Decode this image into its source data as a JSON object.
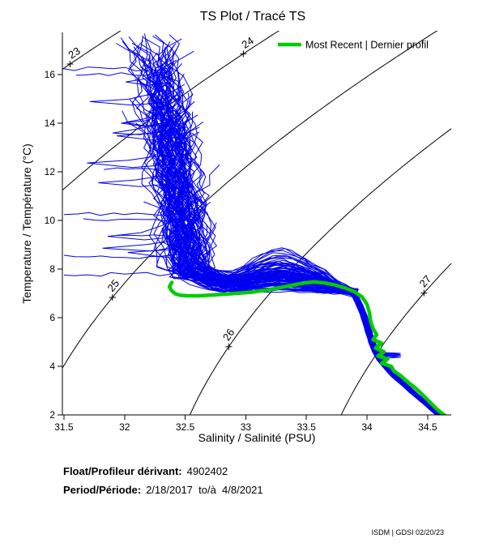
{
  "title": "TS Plot / Tracé TS",
  "legend": {
    "label": "Most Recent | Dernier profil"
  },
  "info": {
    "float_label": "Float/Profileur dérivant:",
    "float_value": "4902402",
    "period_label": "Period/Période:",
    "period_value": "2/18/2017  to/à  4/8/2021"
  },
  "footer": {
    "credit": "ISDM | GDSI 02/20/23"
  },
  "colors": {
    "profiles": "#0000EE",
    "most_recent": "#00CC00",
    "contours": "#000000",
    "axis": "#000000"
  },
  "chart_data": {
    "type": "line",
    "title": "TS Plot / Tracé TS",
    "xlabel": "Salinity / Salinité (PSU)",
    "ylabel": "Temperature / Température (°C)",
    "xlim": [
      31.487,
      34.695
    ],
    "ylim": [
      2,
      17.73
    ],
    "x_ticks": [
      31.5,
      32,
      32.5,
      33,
      33.5,
      34,
      34.5
    ],
    "x_tick_labels": [
      "31.5",
      "32",
      "32.5",
      "33",
      "33.5",
      "34",
      "34.5"
    ],
    "y_ticks": [
      2,
      4,
      6,
      8,
      10,
      12,
      14,
      16
    ],
    "y_tick_labels": [
      "2",
      "4",
      "6",
      "8",
      "10",
      "12",
      "14",
      "16"
    ],
    "grid": false,
    "legend_position": "top-right-inside",
    "contours": {
      "kind": "sigma-t density isopycnals (EOS-80, p=0)",
      "levels": [
        {
          "value": 23,
          "label": "23",
          "anchor_s": 31.55
        },
        {
          "value": 24,
          "label": "24",
          "anchor_s": 32.98
        },
        {
          "value": 25,
          "label": "25",
          "anchor_s": 31.9
        },
        {
          "value": 26,
          "label": "26",
          "anchor_s": 32.86
        },
        {
          "value": 27,
          "label": "27",
          "anchor_s": 34.47
        }
      ]
    },
    "most_recent": {
      "name": "Most Recent | Dernier profil",
      "color_key": "most_recent",
      "points_s_t": [
        [
          32.39,
          7.45
        ],
        [
          32.37,
          7.28
        ],
        [
          32.385,
          7.12
        ],
        [
          32.42,
          6.98
        ],
        [
          32.46,
          6.92
        ],
        [
          32.52,
          6.9
        ],
        [
          32.62,
          6.9
        ],
        [
          32.75,
          6.94
        ],
        [
          32.9,
          6.99
        ],
        [
          33.05,
          7.05
        ],
        [
          33.2,
          7.16
        ],
        [
          33.35,
          7.3
        ],
        [
          33.47,
          7.42
        ],
        [
          33.56,
          7.47
        ],
        [
          33.65,
          7.43
        ],
        [
          33.73,
          7.35
        ],
        [
          33.82,
          7.22
        ],
        [
          33.9,
          7.06
        ],
        [
          33.96,
          6.85
        ],
        [
          34.0,
          6.55
        ],
        [
          34.02,
          6.2
        ],
        [
          34.03,
          5.85
        ],
        [
          34.05,
          5.55
        ],
        [
          34.08,
          5.3
        ],
        [
          34.05,
          5.1
        ],
        [
          34.12,
          4.95
        ],
        [
          34.07,
          4.75
        ],
        [
          34.14,
          4.6
        ],
        [
          34.09,
          4.42
        ],
        [
          34.17,
          4.3
        ],
        [
          34.12,
          4.12
        ],
        [
          34.2,
          4.0
        ],
        [
          34.22,
          3.82
        ],
        [
          34.28,
          3.6
        ],
        [
          34.33,
          3.38
        ],
        [
          34.4,
          3.1
        ],
        [
          34.46,
          2.82
        ],
        [
          34.52,
          2.52
        ],
        [
          34.58,
          2.22
        ],
        [
          34.63,
          2.02
        ],
        [
          34.66,
          1.93
        ]
      ]
    },
    "profiles": {
      "description": "All float profiles 2/18/2017 - 4/8/2021 (blue spaghetti), generated from envelope",
      "color_key": "profiles",
      "count": 108,
      "seed": 20170218,
      "band": {
        "s_top": 32.3,
        "drift_per_deg": 0.03
      },
      "surface_t_range": [
        13.6,
        17.7
      ],
      "fresh_levels": [
        {
          "t": 16.25,
          "s": 31.49
        },
        {
          "t": 16.05,
          "s": 31.6
        },
        {
          "t": 10.25,
          "s": 31.5
        },
        {
          "t": 10.0,
          "s": 31.66
        },
        {
          "t": 8.5,
          "s": 31.5
        },
        {
          "t": 7.78,
          "s": 31.5
        },
        {
          "t": 9.35,
          "s": 31.93
        },
        {
          "t": 12.1,
          "s": 31.83
        }
      ],
      "hump": {
        "center": 33.28,
        "width": 0.34,
        "amp_max": 1.35
      },
      "t_base_range": [
        6.95,
        7.6
      ],
      "join": {
        "s": 33.9,
        "t_range": [
          6.9,
          7.2
        ]
      },
      "deep_backbone_t_s": [
        [
          7.0,
          33.9
        ],
        [
          6.5,
          33.95
        ],
        [
          6.0,
          33.99
        ],
        [
          5.5,
          34.02
        ],
        [
          5.0,
          34.05
        ],
        [
          4.5,
          34.09
        ],
        [
          4.0,
          34.16
        ],
        [
          3.5,
          34.26
        ],
        [
          3.0,
          34.37
        ],
        [
          2.5,
          34.49
        ],
        [
          2.0,
          34.61
        ]
      ],
      "deep_jitter": 0.025,
      "left_loop_fraction": 0.1
    }
  }
}
